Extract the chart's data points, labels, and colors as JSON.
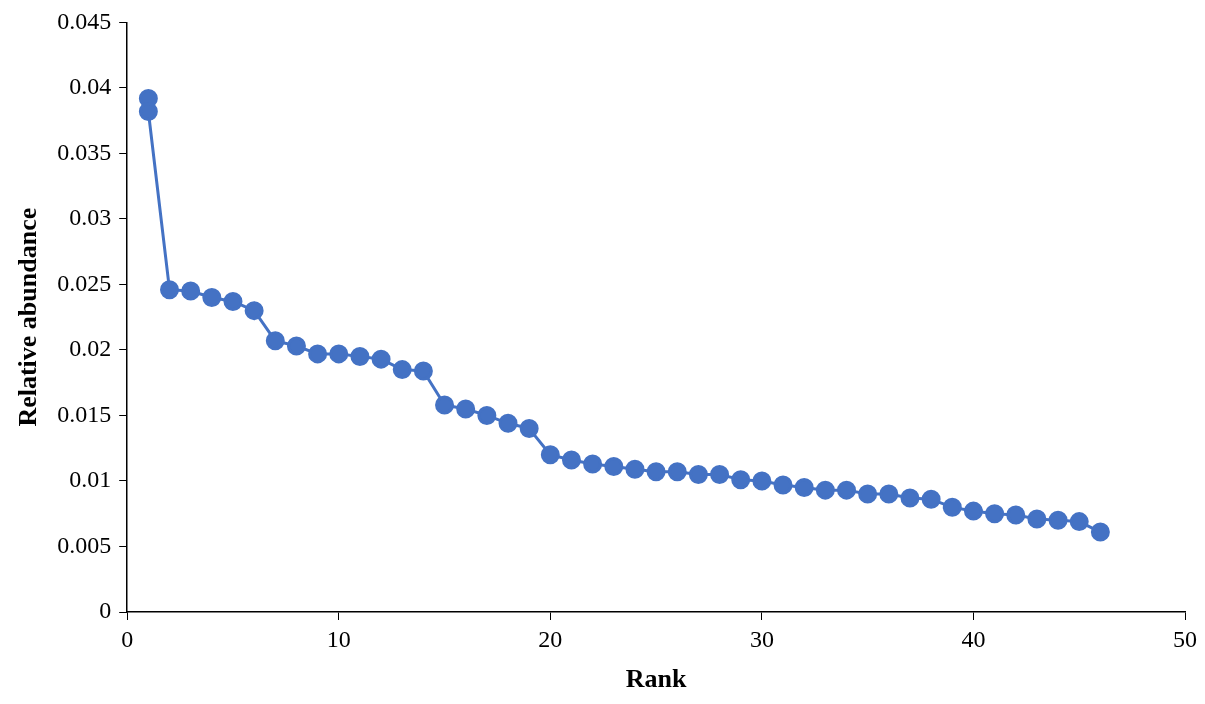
{
  "chart_data": {
    "type": "line",
    "xlabel": "Rank",
    "ylabel": "Relative abundance",
    "xlim": [
      0,
      50
    ],
    "xticks": [
      0,
      10,
      20,
      30,
      40,
      50
    ],
    "ylim": [
      0,
      0.045
    ],
    "yticks": [
      0,
      0.005,
      0.01,
      0.015,
      0.02,
      0.025,
      0.03,
      0.035,
      0.04,
      0.045
    ],
    "grid": false,
    "legend": false,
    "marker": "circle",
    "line_style": "solid",
    "series": [
      {
        "color": "#4472c4",
        "x": [
          1,
          1,
          2,
          3,
          4,
          5,
          6,
          7,
          8,
          9,
          10,
          11,
          12,
          13,
          14,
          15,
          16,
          17,
          18,
          19,
          20,
          21,
          22,
          23,
          24,
          25,
          26,
          27,
          28,
          29,
          30,
          31,
          32,
          33,
          34,
          35,
          36,
          37,
          38,
          39,
          40,
          41,
          42,
          43,
          44,
          45,
          46
        ],
        "values": [
          0.0392,
          0.0382,
          0.0246,
          0.0245,
          0.024,
          0.0237,
          0.023,
          0.0207,
          0.0203,
          0.0197,
          0.0197,
          0.0195,
          0.0193,
          0.0185,
          0.0184,
          0.0158,
          0.0155,
          0.015,
          0.0144,
          0.014,
          0.012,
          0.0116,
          0.0113,
          0.0111,
          0.0109,
          0.0107,
          0.0107,
          0.0105,
          0.0105,
          0.0101,
          0.01,
          0.0097,
          0.0095,
          0.0093,
          0.0093,
          0.009,
          0.009,
          0.0087,
          0.0086,
          0.008,
          0.0077,
          0.0075,
          0.0074,
          0.0071,
          0.007,
          0.0069,
          0.0061
        ]
      }
    ]
  }
}
